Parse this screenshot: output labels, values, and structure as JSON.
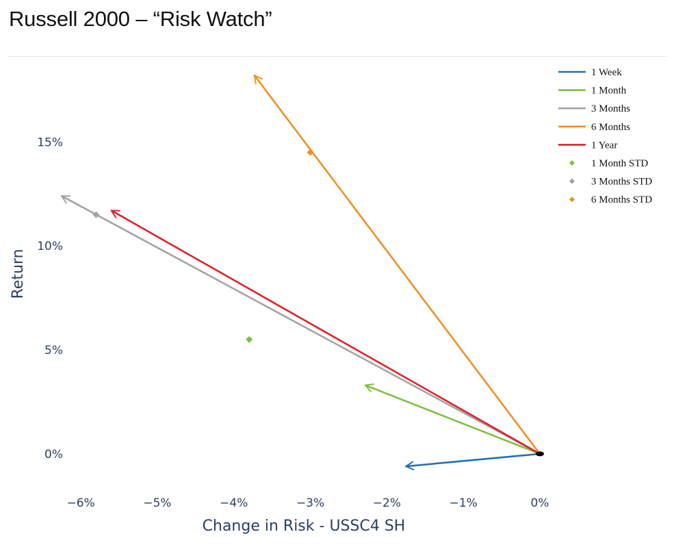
{
  "page": {
    "title": "Russell 2000 – “Risk Watch”"
  },
  "chart_data": {
    "type": "scatter",
    "xlabel": "Change in Risk - USSC4 SH",
    "ylabel": "Return",
    "xlim": [
      -6.27,
      0.17
    ],
    "ylim": [
      -1.65,
      18.6
    ],
    "x_ticks": [
      {
        "value": -6,
        "label": "−6%"
      },
      {
        "value": -5,
        "label": "−5%"
      },
      {
        "value": -4,
        "label": "−4%"
      },
      {
        "value": -3,
        "label": "−3%"
      },
      {
        "value": -2,
        "label": "−2%"
      },
      {
        "value": -1,
        "label": "−1%"
      },
      {
        "value": 0,
        "label": "0%"
      }
    ],
    "y_ticks": [
      {
        "value": 0,
        "label": "0%"
      },
      {
        "value": 5,
        "label": "5%"
      },
      {
        "value": 10,
        "label": "10%"
      },
      {
        "value": 15,
        "label": "15%"
      }
    ],
    "grid": false,
    "legend_position": "top-right",
    "origin": {
      "x": 0,
      "y": 0
    },
    "series": [
      {
        "name": "1 Week",
        "kind": "arrow",
        "color": "#1f6fb4",
        "end": {
          "x": -1.75,
          "y": -0.6
        }
      },
      {
        "name": "1 Month",
        "kind": "arrow",
        "color": "#7dbf40",
        "end": {
          "x": -2.28,
          "y": 3.3
        }
      },
      {
        "name": "3 Months",
        "kind": "arrow",
        "color": "#a3a3a3",
        "end": {
          "x": -6.25,
          "y": 12.4
        }
      },
      {
        "name": "6 Months",
        "kind": "arrow",
        "color": "#f18f24",
        "end": {
          "x": -3.73,
          "y": 18.2
        }
      },
      {
        "name": "1 Year",
        "kind": "arrow",
        "color": "#e0202a",
        "end": {
          "x": -5.6,
          "y": 11.7
        }
      },
      {
        "name": "1 Month STD",
        "kind": "marker",
        "color": "#7dbf40",
        "point": {
          "x": -3.8,
          "y": 5.5
        }
      },
      {
        "name": "3 Months STD",
        "kind": "marker",
        "color": "#a3a3a3",
        "point": {
          "x": -5.8,
          "y": 11.5
        }
      },
      {
        "name": "6 Months STD",
        "kind": "marker",
        "color": "#f18f24",
        "point": {
          "x": -3.0,
          "y": 14.5
        }
      }
    ]
  }
}
